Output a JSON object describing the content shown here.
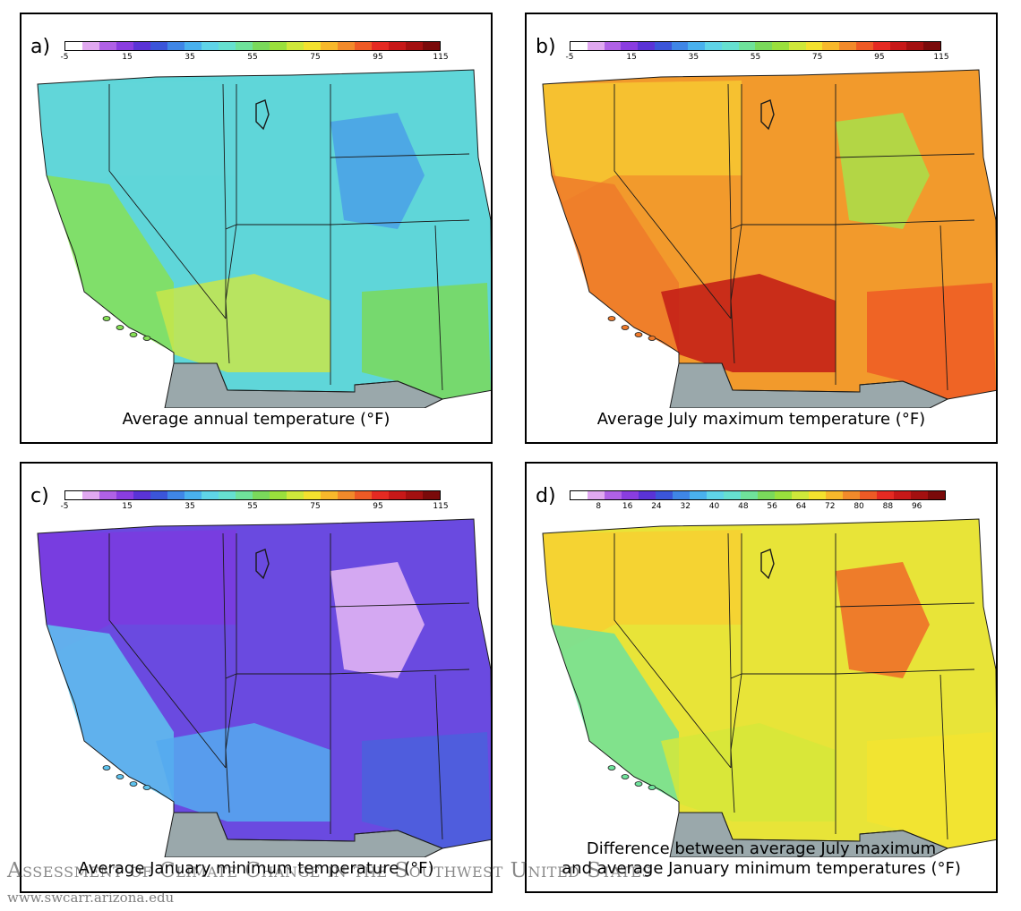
{
  "colors": {
    "annual": [
      "#ffffff",
      "#e0a8f0",
      "#b061e6",
      "#8a3de0",
      "#5a33d6",
      "#3b55d9",
      "#3f86e6",
      "#49b1ee",
      "#5fd4e8",
      "#66e0d0",
      "#6fe29b",
      "#7ad95b",
      "#9ae03c",
      "#cfe83a",
      "#f4e12e",
      "#f7b82b",
      "#f28a2a",
      "#ee5a25",
      "#e52a22",
      "#c71818",
      "#a31010",
      "#7a0a0a"
    ],
    "difference": [
      "#ffffff",
      "#e0a8f0",
      "#b061e6",
      "#8a3de0",
      "#5a33d6",
      "#3b55d9",
      "#3f86e6",
      "#49b1ee",
      "#5fd4e8",
      "#66e0d0",
      "#6fe29b",
      "#7ad95b",
      "#9ae03c",
      "#cfe83a",
      "#f4e12e",
      "#f7b82b",
      "#f28a2a",
      "#ee5a25",
      "#e52a22",
      "#c71818",
      "#a31010",
      "#7a0a0a"
    ],
    "mexico": "#9aa8ab",
    "border": "#1a1a1a"
  },
  "panels": [
    {
      "letter": "a)",
      "caption": "Average annual temperature (°F)",
      "scale": "annual",
      "ticks": [
        "-5",
        "15",
        "35",
        "55",
        "75",
        "95",
        "115"
      ],
      "fills": {
        "north": "#62d6d8",
        "rockies": "#4aa0e6",
        "central": "#5fd6d9",
        "coast": "#86e056",
        "south": "#c8e64a",
        "se": "#7ad95b"
      }
    },
    {
      "letter": "b)",
      "caption": "Average July maximum temperature (°F)",
      "scale": "annual",
      "ticks": [
        "-5",
        "15",
        "35",
        "55",
        "75",
        "95",
        "115"
      ],
      "fills": {
        "north": "#f6c531",
        "rockies": "#a8e04a",
        "central": "#f29a2c",
        "coast": "#ef7a2a",
        "south": "#c21a16",
        "se": "#ee5a25"
      }
    },
    {
      "letter": "c)",
      "caption": "Average January minimum temperature (°F)",
      "scale": "annual",
      "ticks": [
        "-5",
        "15",
        "35",
        "55",
        "75",
        "95",
        "115"
      ],
      "fills": {
        "north": "#7a3ce0",
        "rockies": "#e6b8f4",
        "central": "#6a4ae0",
        "coast": "#5ec3ee",
        "south": "#55aaee",
        "se": "#4a60dc"
      }
    },
    {
      "letter": "d)",
      "caption": "Difference between average July maximum\nand average January minimum temperatures (°F)",
      "scale": "difference",
      "ticks": [
        "8",
        "16",
        "24",
        "32",
        "40",
        "48",
        "56",
        "64",
        "72",
        "80",
        "88",
        "96"
      ],
      "fills": {
        "north": "#f6d032",
        "rockies": "#ee6a28",
        "central": "#e8e438",
        "coast": "#6fe29b",
        "south": "#d6e83a",
        "se": "#f3e430"
      }
    }
  ],
  "footer": {
    "title": "Assessment of Climate Change in the Southwest United States",
    "url": "www.swcarr.arizona.edu"
  }
}
